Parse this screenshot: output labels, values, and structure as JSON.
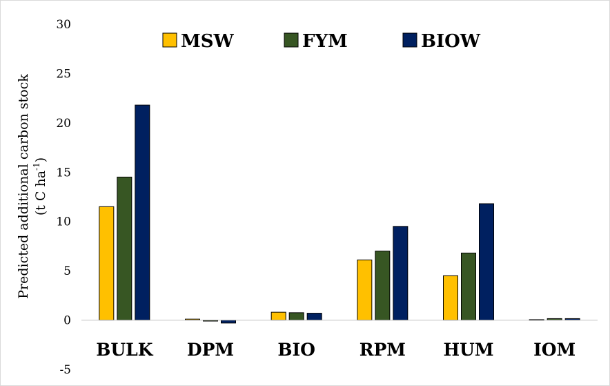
{
  "chart_data": {
    "type": "bar",
    "title": "",
    "xlabel": "",
    "ylabel_line1": "Predicted additional carbon stock",
    "ylabel_line2_prefix": "(t C ha",
    "ylabel_line2_sup": "-1",
    "ylabel_line2_suffix": ")",
    "ylim": [
      -5,
      30
    ],
    "yticks": [
      -5,
      0,
      5,
      10,
      15,
      20,
      25,
      30
    ],
    "ytick_labels": [
      "-5",
      "0",
      "5",
      "10",
      "15",
      "20",
      "25",
      "30"
    ],
    "grid": false,
    "legend_position": "top",
    "categories": [
      "BULK",
      "DPM",
      "BIO",
      "RPM",
      "HUM",
      "IOM"
    ],
    "series": [
      {
        "name": "MSW",
        "color": "#ffc000",
        "values": [
          11.5,
          0.1,
          0.8,
          6.1,
          4.5,
          0.05
        ]
      },
      {
        "name": "FYM",
        "color": "#375623",
        "values": [
          14.5,
          -0.1,
          0.75,
          7.0,
          6.8,
          0.15
        ]
      },
      {
        "name": "BIOW",
        "color": "#002060",
        "values": [
          21.8,
          -0.3,
          0.7,
          9.5,
          11.8,
          0.15
        ]
      }
    ]
  }
}
